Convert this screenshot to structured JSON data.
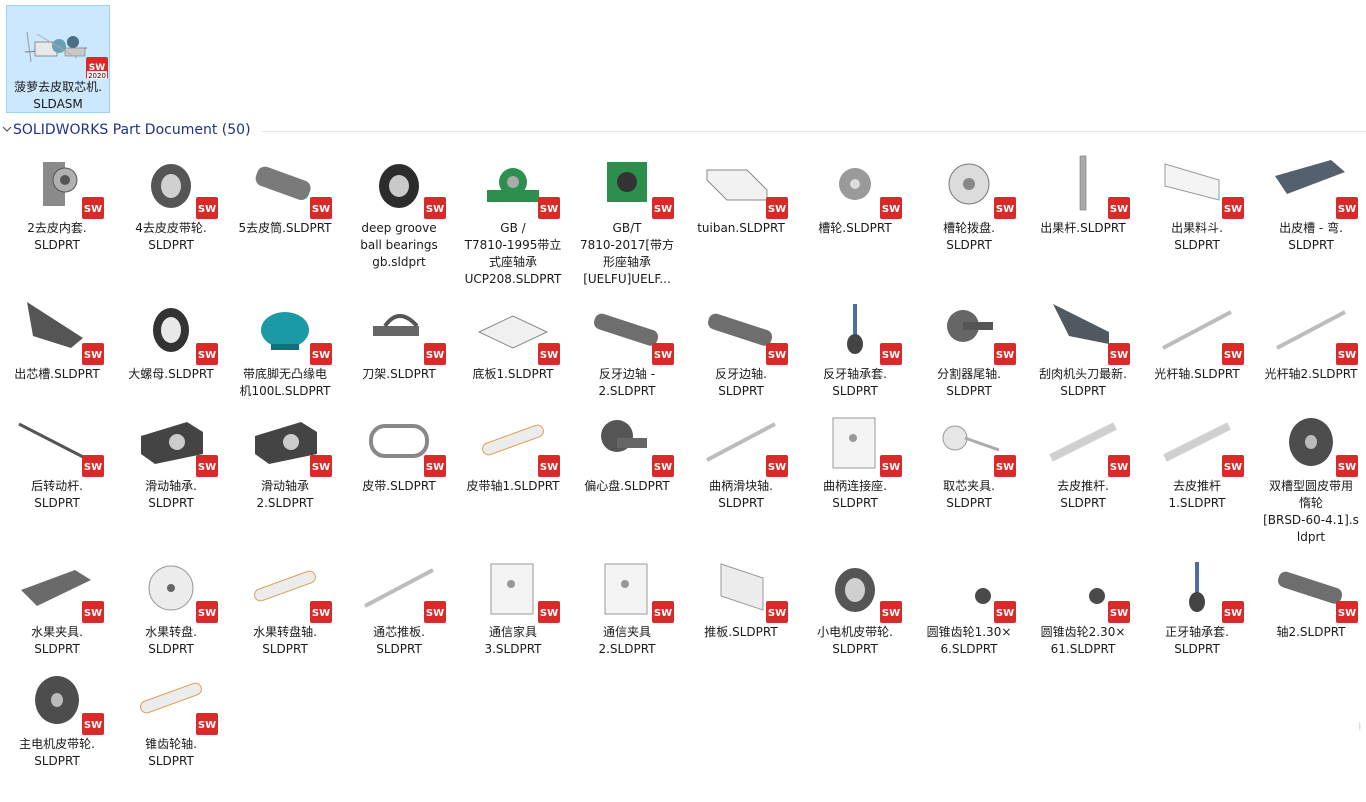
{
  "assembly": {
    "name": "菠萝去皮取芯机.\nSLDASM",
    "version_badge": "2020"
  },
  "group": {
    "title": "SOLIDWORKS Part Document (50)"
  },
  "badge_text": "SW",
  "colors": {
    "selection_bg": "#cce8ff",
    "selection_border": "#99d1ff",
    "group_title": "#1e3287",
    "sw_red": "#d92a2a"
  },
  "files": [
    {
      "name": "2去皮内套.\nSLDPRT",
      "icon": "sleeve-part-icon"
    },
    {
      "name": "4去皮皮带轮.\nSLDPRT",
      "icon": "pulley-part-icon"
    },
    {
      "name": "5去皮筒.SLDPRT",
      "icon": "tube-part-icon"
    },
    {
      "name": "deep groove\nball bearings\ngb.sldprt",
      "icon": "bearing-part-icon"
    },
    {
      "name": "GB /\nT7810-1995带立\n式座轴承\nUCP208.SLDPRT",
      "icon": "pillow-block-part-icon"
    },
    {
      "name": "GB/T\n7810-2017[带方\n形座轴承\n[UELFU]UELF...",
      "icon": "flange-bearing-part-icon"
    },
    {
      "name": "tuiban.SLDPRT",
      "icon": "bent-plate-part-icon"
    },
    {
      "name": "槽轮.SLDPRT",
      "icon": "geneva-wheel-part-icon"
    },
    {
      "name": "槽轮拨盘.\nSLDPRT",
      "icon": "driver-disc-part-icon"
    },
    {
      "name": "出果杆.SLDPRT",
      "icon": "rod-part-icon"
    },
    {
      "name": "出果料斗.\nSLDPRT",
      "icon": "hopper-part-icon"
    },
    {
      "name": "出皮槽 - 弯.\nSLDPRT",
      "icon": "channel-part-icon"
    },
    {
      "name": "出芯槽.SLDPRT",
      "icon": "chute-part-icon"
    },
    {
      "name": "大螺母.SLDPRT",
      "icon": "nut-part-icon"
    },
    {
      "name": "带底脚无凸缘电\n机100L.SLDPRT",
      "icon": "motor-part-icon"
    },
    {
      "name": "刀架.SLDPRT",
      "icon": "knife-holder-part-icon"
    },
    {
      "name": "底板1.SLDPRT",
      "icon": "base-plate-part-icon"
    },
    {
      "name": "反牙边轴 -\n2.SLDPRT",
      "icon": "shaft-part-icon"
    },
    {
      "name": "反牙边轴.\nSLDPRT",
      "icon": "shaft-part-icon"
    },
    {
      "name": "反牙轴承套.\nSLDPRT",
      "icon": "bearing-sleeve-part-icon"
    },
    {
      "name": "分割器尾轴.\nSLDPRT",
      "icon": "tail-shaft-part-icon"
    },
    {
      "name": "刮肉机头刀最新.\nSLDPRT",
      "icon": "blade-part-icon"
    },
    {
      "name": "光杆轴.SLDPRT",
      "icon": "thin-rod-part-icon"
    },
    {
      "name": "光杆轴2.SLDPRT",
      "icon": "thin-rod-part-icon"
    },
    {
      "name": "后转动杆.\nSLDPRT",
      "icon": "lever-part-icon"
    },
    {
      "name": "滑动轴承.\nSLDPRT",
      "icon": "slide-bearing-part-icon"
    },
    {
      "name": "滑动轴承\n2.SLDPRT",
      "icon": "slide-bearing-part-icon"
    },
    {
      "name": "皮带.SLDPRT",
      "icon": "belt-part-icon"
    },
    {
      "name": "皮带轴1.SLDPRT",
      "icon": "belt-shaft-part-icon"
    },
    {
      "name": "偏心盘.SLDPRT",
      "icon": "eccentric-disc-part-icon"
    },
    {
      "name": "曲柄滑块轴.\nSLDPRT",
      "icon": "thin-rod-part-icon"
    },
    {
      "name": "曲柄连接座.\nSLDPRT",
      "icon": "plate-part-icon"
    },
    {
      "name": "取芯夹具.\nSLDPRT",
      "icon": "fixture-part-icon"
    },
    {
      "name": "去皮推杆.\nSLDPRT",
      "icon": "push-rod-part-icon"
    },
    {
      "name": "去皮推杆\n1.SLDPRT",
      "icon": "push-rod-part-icon"
    },
    {
      "name": "双槽型圆皮带用\n惰轮\n[BRSD-60-4.1].s\nldprt",
      "icon": "idler-pulley-part-icon"
    },
    {
      "name": "水果夹具.\nSLDPRT",
      "icon": "clamp-part-icon"
    },
    {
      "name": "水果转盘.\nSLDPRT",
      "icon": "turntable-part-icon"
    },
    {
      "name": "水果转盘轴.\nSLDPRT",
      "icon": "belt-shaft-part-icon"
    },
    {
      "name": "通芯推板.\nSLDPRT",
      "icon": "thin-rod-part-icon"
    },
    {
      "name": "通信家具\n3.SLDPRT",
      "icon": "plate-part-icon"
    },
    {
      "name": "通信夹具\n2.SLDPRT",
      "icon": "plate-part-icon"
    },
    {
      "name": "推板.SLDPRT",
      "icon": "push-plate-part-icon"
    },
    {
      "name": "小电机皮带轮.\nSLDPRT",
      "icon": "pulley-part-icon"
    },
    {
      "name": "圆锥齿轮1.30×\n6.SLDPRT",
      "icon": "bevel-gear-part-icon"
    },
    {
      "name": "圆锥齿轮2.30×\n61.SLDPRT",
      "icon": "bevel-gear-part-icon"
    },
    {
      "name": "正牙轴承套.\nSLDPRT",
      "icon": "bearing-sleeve-part-icon"
    },
    {
      "name": "轴2.SLDPRT",
      "icon": "shaft-part-icon"
    },
    {
      "name": "主电机皮带轮.\nSLDPRT",
      "icon": "idler-pulley-part-icon"
    },
    {
      "name": "锥齿轮轴.\nSLDPRT",
      "icon": "belt-shaft-part-icon"
    }
  ]
}
